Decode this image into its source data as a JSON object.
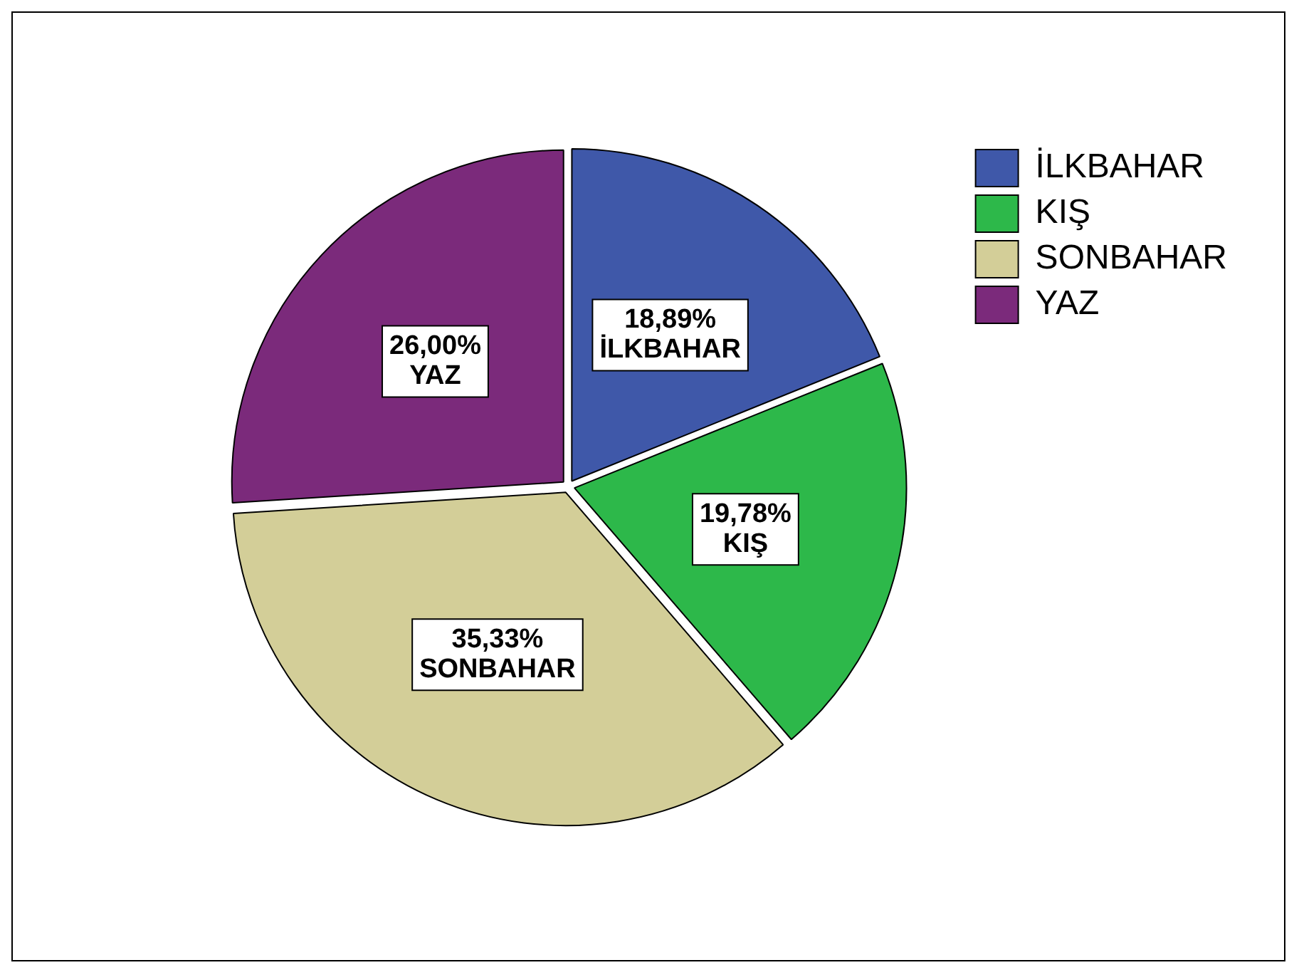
{
  "chart_data": {
    "type": "pie",
    "categories": [
      "İLKBAHAR",
      "KIŞ",
      "SONBAHAR",
      "YAZ"
    ],
    "values": [
      18.89,
      19.78,
      35.33,
      26.0
    ],
    "colors": [
      "#3f58a9",
      "#2db84a",
      "#d3ce98",
      "#7b2a7b"
    ],
    "value_labels": [
      "18,89%",
      "19,78%",
      "35,33%",
      "26,00%"
    ],
    "legend": "top right"
  }
}
